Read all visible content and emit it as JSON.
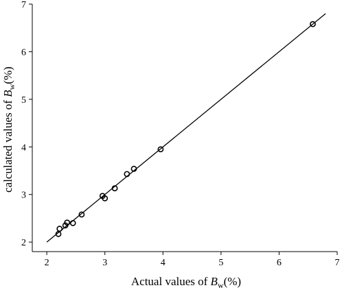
{
  "chart_data": {
    "type": "scatter",
    "title": "",
    "xlabel": {
      "prefix": "Actual values of ",
      "var": "B",
      "sub": "w",
      "suffix": "(%)"
    },
    "ylabel": {
      "prefix": "calculated values of ",
      "var": "B",
      "sub": "w",
      "suffix": "(%)"
    },
    "xlim": [
      1.75,
      7
    ],
    "ylim": [
      1.8,
      7
    ],
    "xticks": [
      2,
      3,
      4,
      5,
      6,
      7
    ],
    "yticks": [
      2,
      3,
      4,
      5,
      6,
      7
    ],
    "grid": false,
    "legend": "none",
    "marker": "open-circle",
    "points": [
      {
        "x": 2.2,
        "y": 2.17
      },
      {
        "x": 2.22,
        "y": 2.28
      },
      {
        "x": 2.32,
        "y": 2.35
      },
      {
        "x": 2.35,
        "y": 2.41
      },
      {
        "x": 2.45,
        "y": 2.4
      },
      {
        "x": 2.6,
        "y": 2.58
      },
      {
        "x": 2.96,
        "y": 2.97
      },
      {
        "x": 3.0,
        "y": 2.92
      },
      {
        "x": 3.17,
        "y": 3.13
      },
      {
        "x": 3.38,
        "y": 3.43
      },
      {
        "x": 3.5,
        "y": 3.54
      },
      {
        "x": 3.96,
        "y": 3.95
      },
      {
        "x": 6.58,
        "y": 6.58
      }
    ],
    "fit_line": {
      "x": [
        2.0,
        6.8
      ],
      "y": [
        2.0,
        6.8
      ]
    }
  }
}
